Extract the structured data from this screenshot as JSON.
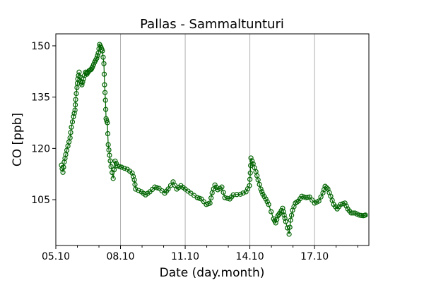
{
  "chart_data": {
    "type": "line",
    "title": "Pallas - Sammaltunturi",
    "xlabel": "Date (day.month)",
    "ylabel": "CO [ppb]",
    "xlim": [
      5,
      19.52
    ],
    "ylim": [
      91.6,
      153.5
    ],
    "x_ticks": [
      {
        "value": 5,
        "label": "05.10"
      },
      {
        "value": 8,
        "label": "08.10"
      },
      {
        "value": 11,
        "label": "11.10"
      },
      {
        "value": 14,
        "label": "14.10"
      },
      {
        "value": 17,
        "label": "17.10"
      }
    ],
    "x_minor_ticks": [
      6,
      7,
      9,
      10,
      12,
      13,
      15,
      16,
      18,
      19
    ],
    "y_ticks": [
      {
        "value": 105,
        "label": "105"
      },
      {
        "value": 120,
        "label": "120"
      },
      {
        "value": 135,
        "label": "135"
      },
      {
        "value": 150,
        "label": "150"
      }
    ],
    "grid": "vertical lines at major x ticks",
    "series": [
      {
        "name": "CO",
        "color": "#006400",
        "marker": "open-circle",
        "x": [
          5.26,
          5.33,
          5.39,
          5.46,
          5.56,
          5.66,
          5.72,
          5.82,
          5.89,
          5.92,
          5.98,
          6.02,
          6.08,
          6.15,
          6.21,
          6.28,
          6.38,
          6.44,
          6.54,
          6.64,
          6.7,
          6.8,
          6.9,
          6.97,
          7.03,
          7.1,
          7.16,
          7.23,
          7.26,
          7.3,
          7.33,
          7.39,
          7.43,
          7.49,
          7.56,
          7.66,
          7.75,
          7.85,
          8.05,
          8.31,
          8.54,
          8.64,
          8.7,
          8.97,
          9.16,
          9.36,
          9.59,
          9.79,
          10.05,
          10.21,
          10.44,
          10.61,
          10.8,
          11.0,
          11.26,
          11.56,
          11.75,
          11.98,
          12.15,
          12.25,
          12.38,
          12.51,
          12.7,
          12.84,
          13.07,
          13.23,
          13.56,
          13.82,
          13.98,
          14.02,
          14.05,
          14.15,
          14.28,
          14.38,
          14.51,
          14.6,
          14.74,
          14.87,
          15.1,
          15.2,
          15.3,
          15.39,
          15.52,
          15.59,
          15.66,
          15.82,
          15.89,
          15.98,
          16.11,
          16.25,
          16.41,
          16.61,
          16.77,
          17.0,
          17.2,
          17.39,
          17.49,
          17.62,
          17.75,
          17.89,
          18.05,
          18.21,
          18.41,
          18.54,
          18.7,
          18.87,
          19.07,
          19.26,
          19.36
        ],
        "y": [
          115.1,
          113,
          116,
          118.2,
          120.7,
          123.1,
          126.2,
          129.3,
          131.2,
          134.3,
          137.8,
          140.3,
          142.3,
          139.6,
          138.6,
          140.3,
          142.3,
          141.7,
          142.7,
          143.1,
          143.8,
          145.2,
          146.4,
          147.9,
          150.4,
          149.5,
          148.5,
          144.8,
          138.6,
          134.1,
          128.7,
          127.5,
          121.1,
          118,
          114.7,
          111.2,
          116.3,
          114.9,
          114.5,
          113.9,
          112.8,
          110.8,
          108.1,
          107.3,
          106.4,
          107.3,
          108.7,
          108.3,
          106.9,
          108.1,
          110.2,
          108.1,
          109.1,
          108.1,
          106.9,
          105.6,
          105.2,
          103.6,
          104,
          107,
          109.3,
          107.9,
          108.7,
          105.6,
          105.2,
          106.4,
          106.6,
          107.3,
          109.1,
          112.8,
          117.2,
          115.5,
          113.2,
          110.8,
          108.1,
          106.6,
          105.2,
          103.6,
          99.4,
          98.2,
          100.3,
          101.1,
          102.5,
          100.5,
          98.6,
          94.9,
          99,
          101.9,
          104,
          104.6,
          106,
          105.6,
          105.8,
          104,
          104.6,
          107,
          108.9,
          108.1,
          106,
          103.6,
          102.3,
          103.6,
          104,
          102.3,
          101.1,
          101.1,
          100.5,
          100.3,
          100.5
        ]
      }
    ]
  }
}
